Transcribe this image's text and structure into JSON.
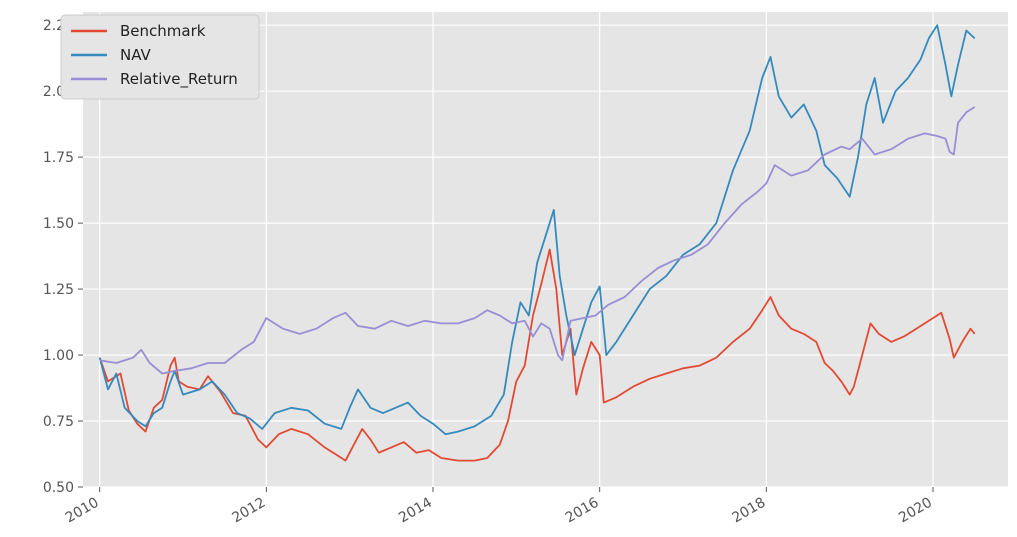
{
  "chart_data": {
    "type": "line",
    "title": "",
    "xlabel": "",
    "ylabel": "",
    "xlim": [
      2009.8,
      2020.9
    ],
    "ylim": [
      0.5,
      2.3
    ],
    "x_ticks": [
      2010,
      2012,
      2014,
      2016,
      2018,
      2020
    ],
    "x_tick_labels": [
      "2010",
      "2012",
      "2014",
      "2016",
      "2018",
      "2020"
    ],
    "y_ticks": [
      0.5,
      0.75,
      1.0,
      1.25,
      1.5,
      1.75,
      2.0,
      2.25
    ],
    "y_tick_labels": [
      "0.50",
      "0.75",
      "1.00",
      "1.25",
      "1.50",
      "1.75",
      "2.00",
      "2.25"
    ],
    "grid": true,
    "legend_position": "top-left",
    "colors": {
      "background": "#e5e5e5",
      "grid": "#ffffff"
    },
    "series": [
      {
        "name": "Benchmark",
        "color": "#e24a33",
        "points": [
          [
            2010.0,
            0.99
          ],
          [
            2010.1,
            0.9
          ],
          [
            2010.25,
            0.93
          ],
          [
            2010.35,
            0.79
          ],
          [
            2010.45,
            0.74
          ],
          [
            2010.55,
            0.71
          ],
          [
            2010.65,
            0.8
          ],
          [
            2010.75,
            0.83
          ],
          [
            2010.85,
            0.96
          ],
          [
            2010.9,
            0.99
          ],
          [
            2010.95,
            0.9
          ],
          [
            2011.05,
            0.88
          ],
          [
            2011.2,
            0.87
          ],
          [
            2011.3,
            0.92
          ],
          [
            2011.45,
            0.86
          ],
          [
            2011.6,
            0.78
          ],
          [
            2011.75,
            0.77
          ],
          [
            2011.9,
            0.68
          ],
          [
            2012.0,
            0.65
          ],
          [
            2012.15,
            0.7
          ],
          [
            2012.3,
            0.72
          ],
          [
            2012.5,
            0.7
          ],
          [
            2012.7,
            0.65
          ],
          [
            2012.85,
            0.62
          ],
          [
            2012.95,
            0.6
          ],
          [
            2013.05,
            0.66
          ],
          [
            2013.15,
            0.72
          ],
          [
            2013.25,
            0.68
          ],
          [
            2013.35,
            0.63
          ],
          [
            2013.5,
            0.65
          ],
          [
            2013.65,
            0.67
          ],
          [
            2013.8,
            0.63
          ],
          [
            2013.95,
            0.64
          ],
          [
            2014.1,
            0.61
          ],
          [
            2014.3,
            0.6
          ],
          [
            2014.5,
            0.6
          ],
          [
            2014.65,
            0.61
          ],
          [
            2014.8,
            0.66
          ],
          [
            2014.9,
            0.75
          ],
          [
            2015.0,
            0.9
          ],
          [
            2015.1,
            0.96
          ],
          [
            2015.2,
            1.15
          ],
          [
            2015.3,
            1.27
          ],
          [
            2015.4,
            1.4
          ],
          [
            2015.48,
            1.25
          ],
          [
            2015.55,
            1.0
          ],
          [
            2015.65,
            1.1
          ],
          [
            2015.72,
            0.85
          ],
          [
            2015.8,
            0.95
          ],
          [
            2015.9,
            1.05
          ],
          [
            2016.0,
            1.0
          ],
          [
            2016.05,
            0.82
          ],
          [
            2016.2,
            0.84
          ],
          [
            2016.4,
            0.88
          ],
          [
            2016.6,
            0.91
          ],
          [
            2016.8,
            0.93
          ],
          [
            2017.0,
            0.95
          ],
          [
            2017.2,
            0.96
          ],
          [
            2017.4,
            0.99
          ],
          [
            2017.6,
            1.05
          ],
          [
            2017.8,
            1.1
          ],
          [
            2017.95,
            1.17
          ],
          [
            2018.05,
            1.22
          ],
          [
            2018.15,
            1.15
          ],
          [
            2018.3,
            1.1
          ],
          [
            2018.45,
            1.08
          ],
          [
            2018.6,
            1.05
          ],
          [
            2018.7,
            0.97
          ],
          [
            2018.8,
            0.94
          ],
          [
            2018.9,
            0.9
          ],
          [
            2019.0,
            0.85
          ],
          [
            2019.05,
            0.88
          ],
          [
            2019.15,
            1.0
          ],
          [
            2019.25,
            1.12
          ],
          [
            2019.35,
            1.08
          ],
          [
            2019.5,
            1.05
          ],
          [
            2019.65,
            1.07
          ],
          [
            2019.8,
            1.1
          ],
          [
            2019.95,
            1.13
          ],
          [
            2020.1,
            1.16
          ],
          [
            2020.2,
            1.06
          ],
          [
            2020.25,
            0.99
          ],
          [
            2020.35,
            1.05
          ],
          [
            2020.45,
            1.1
          ],
          [
            2020.5,
            1.08
          ]
        ]
      },
      {
        "name": "NAV",
        "color": "#348abd",
        "points": [
          [
            2010.0,
            0.99
          ],
          [
            2010.1,
            0.87
          ],
          [
            2010.2,
            0.93
          ],
          [
            2010.3,
            0.8
          ],
          [
            2010.45,
            0.75
          ],
          [
            2010.55,
            0.73
          ],
          [
            2010.65,
            0.78
          ],
          [
            2010.75,
            0.8
          ],
          [
            2010.85,
            0.9
          ],
          [
            2010.9,
            0.94
          ],
          [
            2011.0,
            0.85
          ],
          [
            2011.2,
            0.87
          ],
          [
            2011.35,
            0.9
          ],
          [
            2011.5,
            0.85
          ],
          [
            2011.65,
            0.78
          ],
          [
            2011.8,
            0.76
          ],
          [
            2011.95,
            0.72
          ],
          [
            2012.1,
            0.78
          ],
          [
            2012.3,
            0.8
          ],
          [
            2012.5,
            0.79
          ],
          [
            2012.7,
            0.74
          ],
          [
            2012.9,
            0.72
          ],
          [
            2013.0,
            0.8
          ],
          [
            2013.1,
            0.87
          ],
          [
            2013.25,
            0.8
          ],
          [
            2013.4,
            0.78
          ],
          [
            2013.55,
            0.8
          ],
          [
            2013.7,
            0.82
          ],
          [
            2013.85,
            0.77
          ],
          [
            2014.0,
            0.74
          ],
          [
            2014.15,
            0.7
          ],
          [
            2014.3,
            0.71
          ],
          [
            2014.5,
            0.73
          ],
          [
            2014.7,
            0.77
          ],
          [
            2014.85,
            0.85
          ],
          [
            2014.95,
            1.05
          ],
          [
            2015.05,
            1.2
          ],
          [
            2015.15,
            1.15
          ],
          [
            2015.25,
            1.35
          ],
          [
            2015.35,
            1.45
          ],
          [
            2015.45,
            1.55
          ],
          [
            2015.52,
            1.3
          ],
          [
            2015.6,
            1.15
          ],
          [
            2015.7,
            1.0
          ],
          [
            2015.8,
            1.1
          ],
          [
            2015.9,
            1.2
          ],
          [
            2016.0,
            1.26
          ],
          [
            2016.08,
            1.0
          ],
          [
            2016.2,
            1.05
          ],
          [
            2016.4,
            1.15
          ],
          [
            2016.6,
            1.25
          ],
          [
            2016.8,
            1.3
          ],
          [
            2017.0,
            1.38
          ],
          [
            2017.2,
            1.42
          ],
          [
            2017.4,
            1.5
          ],
          [
            2017.6,
            1.7
          ],
          [
            2017.8,
            1.85
          ],
          [
            2017.95,
            2.05
          ],
          [
            2018.05,
            2.13
          ],
          [
            2018.15,
            1.98
          ],
          [
            2018.3,
            1.9
          ],
          [
            2018.45,
            1.95
          ],
          [
            2018.6,
            1.85
          ],
          [
            2018.7,
            1.72
          ],
          [
            2018.85,
            1.67
          ],
          [
            2019.0,
            1.6
          ],
          [
            2019.1,
            1.75
          ],
          [
            2019.2,
            1.95
          ],
          [
            2019.3,
            2.05
          ],
          [
            2019.4,
            1.88
          ],
          [
            2019.55,
            2.0
          ],
          [
            2019.7,
            2.05
          ],
          [
            2019.85,
            2.12
          ],
          [
            2019.95,
            2.2
          ],
          [
            2020.05,
            2.25
          ],
          [
            2020.15,
            2.1
          ],
          [
            2020.22,
            1.98
          ],
          [
            2020.3,
            2.1
          ],
          [
            2020.4,
            2.23
          ],
          [
            2020.5,
            2.2
          ]
        ]
      },
      {
        "name": "Relative_Return",
        "color": "#988ed5",
        "points": [
          [
            2010.0,
            0.98
          ],
          [
            2010.2,
            0.97
          ],
          [
            2010.4,
            0.99
          ],
          [
            2010.5,
            1.02
          ],
          [
            2010.6,
            0.97
          ],
          [
            2010.75,
            0.93
          ],
          [
            2010.9,
            0.94
          ],
          [
            2011.1,
            0.95
          ],
          [
            2011.3,
            0.97
          ],
          [
            2011.5,
            0.97
          ],
          [
            2011.7,
            1.02
          ],
          [
            2011.85,
            1.05
          ],
          [
            2012.0,
            1.14
          ],
          [
            2012.2,
            1.1
          ],
          [
            2012.4,
            1.08
          ],
          [
            2012.6,
            1.1
          ],
          [
            2012.8,
            1.14
          ],
          [
            2012.95,
            1.16
          ],
          [
            2013.1,
            1.11
          ],
          [
            2013.3,
            1.1
          ],
          [
            2013.5,
            1.13
          ],
          [
            2013.7,
            1.11
          ],
          [
            2013.9,
            1.13
          ],
          [
            2014.1,
            1.12
          ],
          [
            2014.3,
            1.12
          ],
          [
            2014.5,
            1.14
          ],
          [
            2014.65,
            1.17
          ],
          [
            2014.8,
            1.15
          ],
          [
            2014.95,
            1.12
          ],
          [
            2015.1,
            1.13
          ],
          [
            2015.2,
            1.07
          ],
          [
            2015.3,
            1.12
          ],
          [
            2015.4,
            1.1
          ],
          [
            2015.5,
            1.0
          ],
          [
            2015.55,
            0.98
          ],
          [
            2015.65,
            1.13
          ],
          [
            2015.8,
            1.14
          ],
          [
            2015.95,
            1.15
          ],
          [
            2016.1,
            1.19
          ],
          [
            2016.3,
            1.22
          ],
          [
            2016.5,
            1.28
          ],
          [
            2016.7,
            1.33
          ],
          [
            2016.9,
            1.36
          ],
          [
            2017.1,
            1.38
          ],
          [
            2017.3,
            1.42
          ],
          [
            2017.5,
            1.5
          ],
          [
            2017.7,
            1.57
          ],
          [
            2017.9,
            1.62
          ],
          [
            2018.0,
            1.65
          ],
          [
            2018.1,
            1.72
          ],
          [
            2018.3,
            1.68
          ],
          [
            2018.5,
            1.7
          ],
          [
            2018.7,
            1.76
          ],
          [
            2018.9,
            1.79
          ],
          [
            2019.0,
            1.78
          ],
          [
            2019.15,
            1.82
          ],
          [
            2019.3,
            1.76
          ],
          [
            2019.5,
            1.78
          ],
          [
            2019.7,
            1.82
          ],
          [
            2019.9,
            1.84
          ],
          [
            2020.05,
            1.83
          ],
          [
            2020.15,
            1.82
          ],
          [
            2020.2,
            1.77
          ],
          [
            2020.25,
            1.76
          ],
          [
            2020.3,
            1.88
          ],
          [
            2020.4,
            1.92
          ],
          [
            2020.5,
            1.94
          ]
        ]
      }
    ]
  }
}
